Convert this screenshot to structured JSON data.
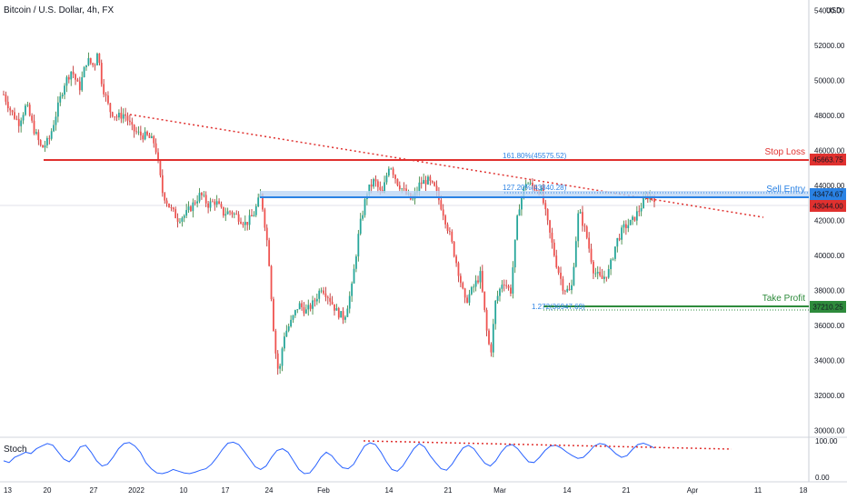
{
  "header": {
    "title": "Bitcoin / U.S. Dollar, 4h, FX",
    "currency": "USD"
  },
  "chart_data": {
    "type": "candlestick",
    "title": "Bitcoin / U.S. Dollar, 4h, FX",
    "y_ticks": [
      "30000.00",
      "32000.00",
      "34000.00",
      "36000.00",
      "38000.00",
      "40000.00",
      "42000.00",
      "44000.00",
      "46000.00",
      "48000.00",
      "50000.00",
      "52000.00",
      "54000.00"
    ],
    "ylim": [
      29600,
      54600
    ],
    "x_ticks": [
      "13",
      "20",
      "27",
      "2022",
      "10",
      "17",
      "24",
      "Feb",
      "14",
      "21",
      "Mar",
      "14",
      "21",
      "Apr",
      "11",
      "18"
    ],
    "trend_points": [
      [
        0,
        49200
      ],
      [
        5,
        48200
      ],
      [
        10,
        47600
      ],
      [
        15,
        48600
      ],
      [
        20,
        47200
      ],
      [
        25,
        46100
      ],
      [
        30,
        46600
      ],
      [
        35,
        48200
      ],
      [
        40,
        49800
      ],
      [
        45,
        50600
      ],
      [
        50,
        49500
      ],
      [
        55,
        51200
      ],
      [
        60,
        50800
      ],
      [
        62,
        51800
      ],
      [
        65,
        49800
      ],
      [
        70,
        48300
      ],
      [
        75,
        47900
      ],
      [
        80,
        48100
      ],
      [
        85,
        47200
      ],
      [
        90,
        46900
      ],
      [
        95,
        46800
      ],
      [
        100,
        46400
      ],
      [
        105,
        43600
      ],
      [
        110,
        42700
      ],
      [
        115,
        42100
      ],
      [
        120,
        42300
      ],
      [
        125,
        42900
      ],
      [
        130,
        43500
      ],
      [
        135,
        42900
      ],
      [
        140,
        43100
      ],
      [
        145,
        42400
      ],
      [
        150,
        42500
      ],
      [
        155,
        42200
      ],
      [
        160,
        41800
      ],
      [
        165,
        42300
      ],
      [
        170,
        43500
      ],
      [
        175,
        40200
      ],
      [
        178,
        36200
      ],
      [
        180,
        34200
      ],
      [
        182,
        33100
      ],
      [
        185,
        35400
      ],
      [
        190,
        36200
      ],
      [
        195,
        37200
      ],
      [
        200,
        36800
      ],
      [
        205,
        37300
      ],
      [
        210,
        38200
      ],
      [
        215,
        37600
      ],
      [
        220,
        36800
      ],
      [
        225,
        36400
      ],
      [
        230,
        38100
      ],
      [
        235,
        41500
      ],
      [
        240,
        43600
      ],
      [
        245,
        44300
      ],
      [
        250,
        43400
      ],
      [
        255,
        45300
      ],
      [
        260,
        44200
      ],
      [
        265,
        43600
      ],
      [
        270,
        43100
      ],
      [
        275,
        44100
      ],
      [
        280,
        44300
      ],
      [
        285,
        43800
      ],
      [
        290,
        42600
      ],
      [
        295,
        41100
      ],
      [
        300,
        39300
      ],
      [
        305,
        37300
      ],
      [
        310,
        38100
      ],
      [
        315,
        38900
      ],
      [
        320,
        35100
      ],
      [
        322,
        34500
      ],
      [
        325,
        37300
      ],
      [
        330,
        38600
      ],
      [
        335,
        37900
      ],
      [
        340,
        42600
      ],
      [
        345,
        44200
      ],
      [
        350,
        43900
      ],
      [
        355,
        43700
      ],
      [
        360,
        41600
      ],
      [
        365,
        39600
      ],
      [
        370,
        38100
      ],
      [
        375,
        37900
      ],
      [
        380,
        42600
      ],
      [
        385,
        41200
      ],
      [
        390,
        39100
      ],
      [
        395,
        38600
      ],
      [
        400,
        39100
      ],
      [
        405,
        40800
      ],
      [
        410,
        41600
      ],
      [
        415,
        41900
      ],
      [
        420,
        42600
      ],
      [
        425,
        43400
      ],
      [
        430,
        43300
      ]
    ],
    "levels": [
      {
        "name": "Stop Loss",
        "value": 45663.75,
        "label": "45663.75",
        "color": "#e0312f"
      },
      {
        "name": "Sell Entry",
        "value": 43474.67,
        "label": "43474.67",
        "color": "#2a82e4"
      },
      {
        "name": "Take Profit",
        "value": 37210.25,
        "label": "37210.25",
        "color": "#2e8b3c"
      }
    ],
    "current_price": {
      "value": 43044.0,
      "label": "43044.00",
      "color": "#e0312f"
    },
    "fib_annotations": [
      {
        "text": "161.80%(45575.52)",
        "value": 45575.52
      },
      {
        "text": "127.20%(43840.28)",
        "value": 43840.28
      },
      {
        "text": "1.272(36947.69)",
        "value": 36947.69
      }
    ],
    "stoch": {
      "label": "Stoch",
      "y_ticks": [
        "100.00",
        "0.00"
      ],
      "values": [
        45,
        40,
        55,
        62,
        70,
        66,
        80,
        88,
        95,
        90,
        70,
        50,
        42,
        60,
        85,
        90,
        70,
        45,
        30,
        35,
        55,
        80,
        95,
        98,
        88,
        70,
        40,
        22,
        10,
        8,
        12,
        20,
        15,
        10,
        8,
        12,
        18,
        22,
        35,
        55,
        78,
        96,
        99,
        92,
        72,
        50,
        28,
        20,
        30,
        55,
        75,
        80,
        70,
        45,
        20,
        8,
        10,
        30,
        55,
        70,
        60,
        40,
        25,
        22,
        35,
        62,
        88,
        97,
        92,
        70,
        42,
        20,
        15,
        30,
        55,
        80,
        95,
        85,
        60,
        40,
        22,
        18,
        35,
        60,
        82,
        90,
        80,
        58,
        38,
        30,
        45,
        70,
        88,
        92,
        80,
        60,
        42,
        40,
        55,
        75,
        88,
        90,
        82,
        70,
        60,
        52,
        55,
        70,
        88,
        95,
        92,
        80,
        65,
        55,
        60,
        78,
        92,
        96,
        90,
        82
      ]
    }
  }
}
